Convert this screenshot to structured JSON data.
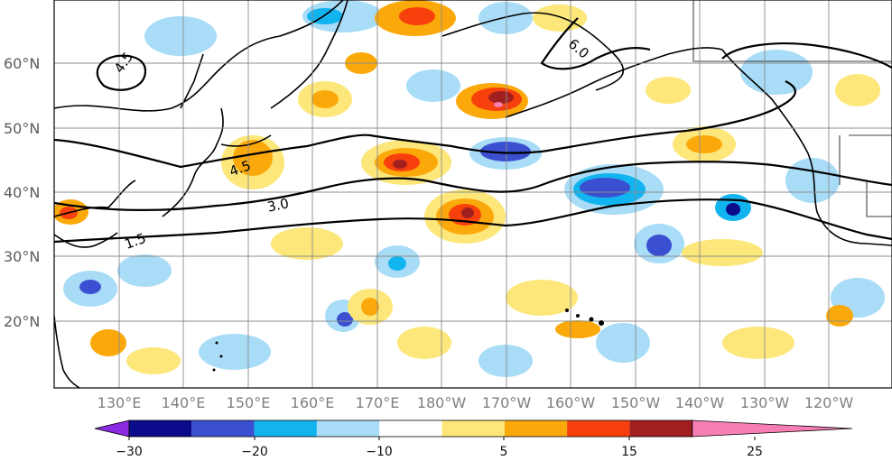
{
  "map": {
    "lat_labels": [
      "60°N",
      "50°N",
      "40°N",
      "30°N",
      "20°N"
    ],
    "lon_labels": [
      "130°E",
      "140°E",
      "150°E",
      "160°E",
      "170°E",
      "180°W",
      "170°W",
      "160°W",
      "150°W",
      "140°W",
      "130°W",
      "120°W"
    ],
    "contour_labels": [
      "4.5",
      "6.0",
      "4.5",
      "3.0",
      "1.5"
    ]
  },
  "colorbar": {
    "tick_labels": [
      "−30",
      "−20",
      "−10",
      "5",
      "15",
      "25"
    ],
    "colors": [
      "#8a2be2",
      "#0b0b8c",
      "#3b4fd1",
      "#12b4f0",
      "#a8dcf7",
      "#ffffff",
      "#fde77a",
      "#fba90a",
      "#f7400c",
      "#a21f1f",
      "#f77eb4"
    ]
  }
}
